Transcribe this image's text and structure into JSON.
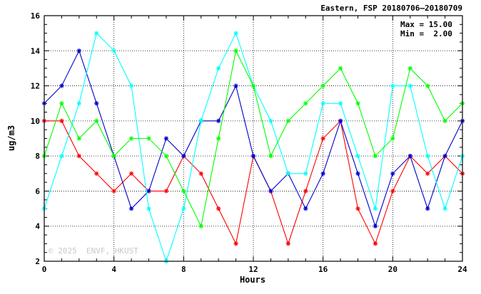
{
  "chart_data": {
    "type": "line",
    "title": "Eastern, FSP 20180706–20180709",
    "xlabel": "Hours",
    "ylabel": "ug/m3",
    "xlim": [
      0,
      24
    ],
    "ylim": [
      2,
      16
    ],
    "x_ticks": [
      0,
      4,
      8,
      12,
      16,
      20,
      24
    ],
    "y_ticks": [
      2,
      4,
      6,
      8,
      10,
      12,
      14,
      16
    ],
    "grid": true,
    "stats": {
      "max": "Max = 15.00",
      "min": "Min =  2.00"
    },
    "watermark": "© 2025  ENVF, HKUST",
    "x": [
      0,
      1,
      2,
      3,
      4,
      5,
      6,
      7,
      8,
      9,
      10,
      11,
      12,
      13,
      14,
      15,
      16,
      17,
      18,
      19,
      20,
      21,
      22,
      23,
      24
    ],
    "series": [
      {
        "color": "#ff0000",
        "values": [
          10,
          10,
          8,
          7,
          6,
          7,
          6,
          6,
          8,
          7,
          5,
          3,
          8,
          6,
          3,
          6,
          9,
          10,
          5,
          3,
          6,
          8,
          7,
          8,
          7
        ]
      },
      {
        "color": "#0000cc",
        "values": [
          11,
          12,
          14,
          11,
          8,
          5,
          6,
          9,
          8,
          10,
          10,
          12,
          8,
          6,
          7,
          5,
          7,
          10,
          7,
          4,
          7,
          8,
          5,
          8,
          10
        ]
      },
      {
        "color": "#00ffff",
        "values": [
          5,
          8,
          11,
          15,
          14,
          12,
          5,
          2,
          5,
          10,
          13,
          15,
          12,
          10,
          7,
          7,
          11,
          11,
          8,
          5,
          12,
          12,
          8,
          5,
          8
        ]
      },
      {
        "color": "#00ff00",
        "values": [
          8,
          11,
          9,
          10,
          8,
          9,
          9,
          8,
          6,
          4,
          9,
          14,
          12,
          8,
          10,
          11,
          12,
          13,
          11,
          8,
          9,
          13,
          12,
          10,
          11
        ]
      }
    ]
  }
}
